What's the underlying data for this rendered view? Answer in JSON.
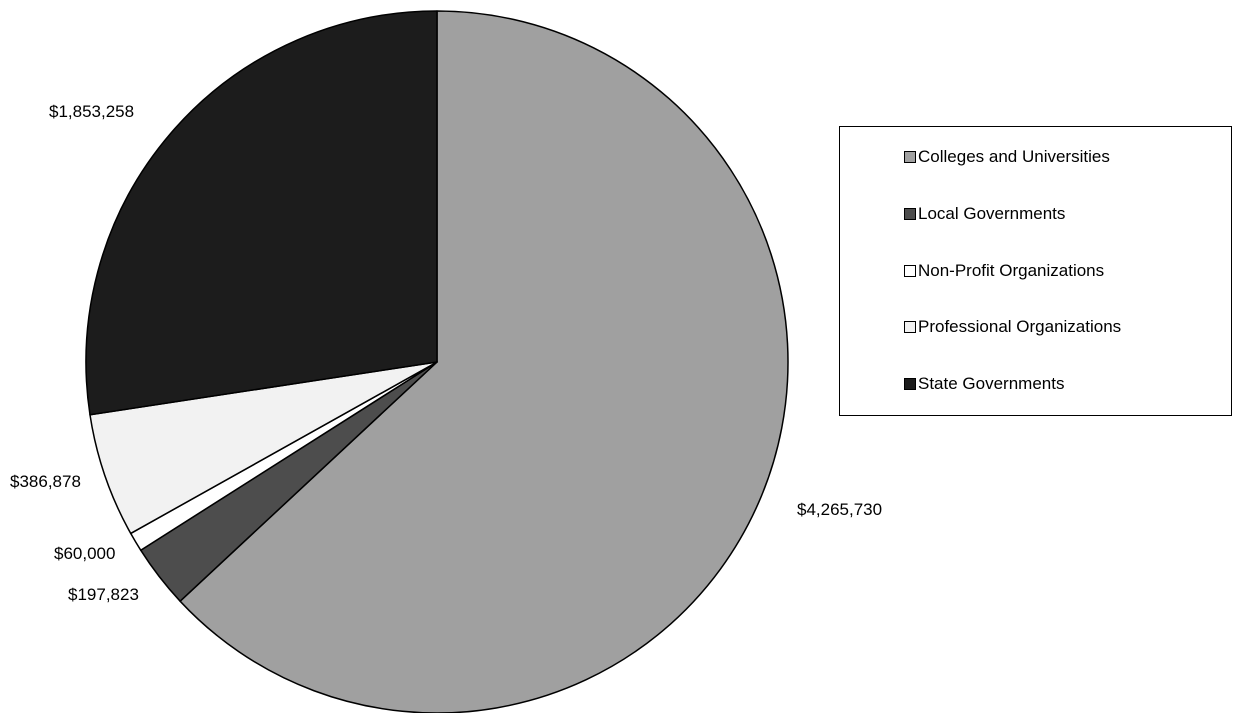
{
  "chart_data": {
    "type": "pie",
    "title": "",
    "categories": [
      "Colleges and Universities",
      "Local Governments",
      "Non-Profit Organizations",
      "Professional Organizations",
      "State Governments"
    ],
    "values": [
      4265730,
      197823,
      60000,
      386878,
      1853258
    ],
    "value_labels": [
      "$4,265,730",
      "$197,823",
      "$60,000",
      "$386,878",
      "$1,853,258"
    ],
    "colors": [
      "#a0a0a0",
      "#4d4d4d",
      "#ffffff",
      "#f2f2f2",
      "#1c1c1c"
    ],
    "legend": {
      "placement": "right",
      "entries": [
        "Colleges and Universities",
        "Local Governments",
        "Non-Profit Organizations",
        "Professional Organizations",
        "State Governments"
      ]
    },
    "start_angle_deg": 0,
    "direction": "clockwise"
  }
}
